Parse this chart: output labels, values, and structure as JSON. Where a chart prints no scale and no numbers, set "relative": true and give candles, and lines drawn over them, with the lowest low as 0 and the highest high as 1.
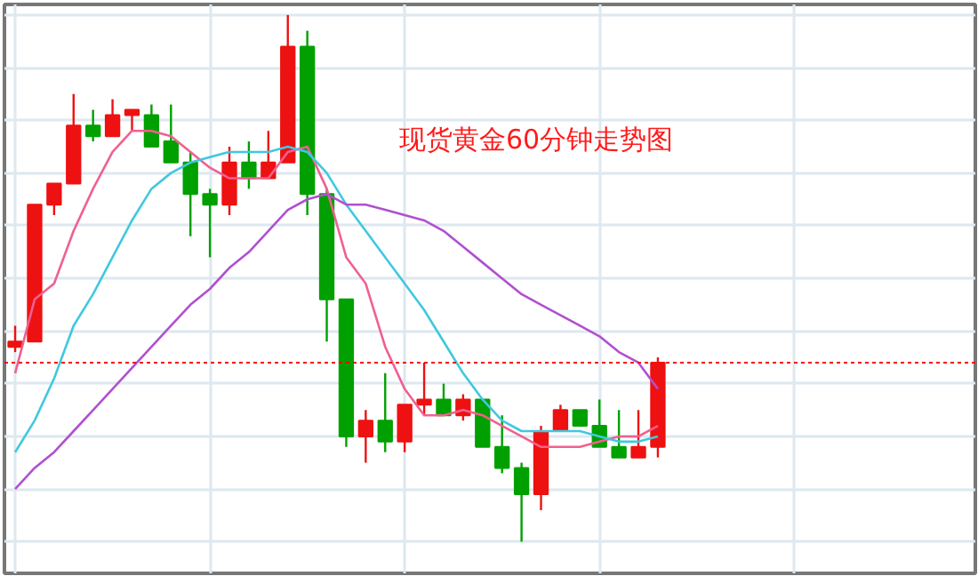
{
  "chart_data": {
    "type": "candlestick",
    "title": "现货黄金60分钟走势图",
    "relative": true,
    "grid": true,
    "categories": [
      null,
      null,
      null,
      null,
      null,
      null,
      null,
      null,
      null,
      null,
      null,
      null,
      null,
      null,
      null,
      null,
      null,
      null,
      null,
      null,
      null,
      null,
      null,
      null,
      null,
      null,
      null,
      null,
      null,
      null,
      null,
      null,
      null,
      null,
      null,
      null,
      null,
      null,
      null,
      null,
      null,
      null,
      null,
      null,
      null,
      null,
      null,
      null,
      null,
      null
    ],
    "ohlc": [
      [
        0.37,
        0.41,
        0.36,
        0.38
      ],
      [
        0.38,
        0.64,
        0.38,
        0.64
      ],
      [
        0.64,
        0.68,
        0.62,
        0.68
      ],
      [
        0.68,
        0.85,
        0.68,
        0.79
      ],
      [
        0.79,
        0.82,
        0.76,
        0.77
      ],
      [
        0.77,
        0.84,
        0.77,
        0.81
      ],
      [
        0.81,
        0.82,
        0.78,
        0.82
      ],
      [
        0.81,
        0.83,
        0.75,
        0.75
      ],
      [
        0.76,
        0.83,
        0.72,
        0.72
      ],
      [
        0.72,
        0.74,
        0.58,
        0.66
      ],
      [
        0.66,
        0.67,
        0.54,
        0.64
      ],
      [
        0.64,
        0.75,
        0.62,
        0.72
      ],
      [
        0.72,
        0.76,
        0.67,
        0.69
      ],
      [
        0.69,
        0.78,
        0.69,
        0.72
      ],
      [
        0.72,
        1,
        0.72,
        0.94
      ],
      [
        0.94,
        0.97,
        0.62,
        0.66
      ],
      [
        0.66,
        0.67,
        0.38,
        0.46
      ],
      [
        0.46,
        0.46,
        0.18,
        0.2
      ],
      [
        0.2,
        0.25,
        0.15,
        0.23
      ],
      [
        0.23,
        0.32,
        0.17,
        0.19
      ],
      [
        0.19,
        0.26,
        0.17,
        0.26
      ],
      [
        0.26,
        0.34,
        0.24,
        0.27
      ],
      [
        0.27,
        0.3,
        0.24,
        0.24
      ],
      [
        0.24,
        0.28,
        0.23,
        0.27
      ],
      [
        0.27,
        0.27,
        0.18,
        0.18
      ],
      [
        0.18,
        0.24,
        0.13,
        0.14
      ],
      [
        0.14,
        0.15,
        0,
        0.09
      ],
      [
        0.09,
        0.22,
        0.06,
        0.21
      ],
      [
        0.21,
        0.26,
        0.21,
        0.25
      ],
      [
        0.25,
        0.25,
        0.22,
        0.22
      ],
      [
        0.22,
        0.27,
        0.18,
        0.18
      ],
      [
        0.18,
        0.25,
        0.16,
        0.16
      ],
      [
        0.16,
        0.25,
        0.16,
        0.18
      ],
      [
        0.18,
        0.35,
        0.16,
        0.34
      ],
      null,
      null,
      null,
      null,
      null,
      null,
      null,
      null,
      null,
      null,
      null,
      null,
      null,
      null,
      null,
      null
    ],
    "colors": [
      "#ee1111",
      "#ee1111",
      "#ee1111",
      "#ee1111",
      "#00a000",
      "#ee1111",
      "#ee1111",
      "#00a000",
      "#00a000",
      "#00a000",
      "#00a000",
      "#ee1111",
      "#00a000",
      "#ee1111",
      "#ee1111",
      "#00a000",
      "#00a000",
      "#00a000",
      "#ee1111",
      "#00a000",
      "#ee1111",
      "#ee1111",
      "#00a000",
      "#ee1111",
      "#00a000",
      "#00a000",
      "#00a000",
      "#ee1111",
      "#ee1111",
      "#00a000",
      "#00a000",
      "#00a000",
      "#ee1111",
      "#ee1111",
      null,
      null,
      null,
      null,
      null,
      null,
      null,
      null,
      null,
      null,
      null,
      null,
      null,
      null,
      null,
      null
    ],
    "series": [
      {
        "type": "line",
        "color": "#f06090",
        "values": [
          0.32,
          0.46,
          0.49,
          0.59,
          0.67,
          0.74,
          0.78,
          0.78,
          0.77,
          0.74,
          0.71,
          0.69,
          0.69,
          0.69,
          0.74,
          0.75,
          0.67,
          0.54,
          0.49,
          0.37,
          0.29,
          0.24,
          0.24,
          0.25,
          0.24,
          0.22,
          0.2,
          0.18,
          0.18,
          0.18,
          0.19,
          0.2,
          0.2,
          0.22,
          null,
          null,
          null,
          null,
          null,
          null,
          null,
          null,
          null,
          null,
          null,
          null,
          null,
          null,
          null,
          null
        ]
      },
      {
        "type": "line",
        "color": "#40c8e0",
        "values": [
          0.17,
          0.23,
          0.31,
          0.41,
          0.47,
          0.54,
          0.61,
          0.67,
          0.7,
          0.72,
          0.73,
          0.74,
          0.74,
          0.74,
          0.75,
          0.74,
          0.7,
          0.64,
          0.59,
          0.54,
          0.49,
          0.44,
          0.38,
          0.32,
          0.27,
          0.23,
          0.21,
          0.21,
          0.21,
          0.21,
          0.2,
          0.19,
          0.19,
          0.2,
          null,
          null,
          null,
          null,
          null,
          null,
          null,
          null,
          null,
          null,
          null,
          null,
          null,
          null,
          null,
          null
        ]
      },
      {
        "type": "line",
        "color": "#b050d0",
        "values": [
          0.1,
          0.14,
          0.17,
          0.21,
          0.25,
          0.29,
          0.33,
          0.37,
          0.41,
          0.45,
          0.48,
          0.52,
          0.55,
          0.59,
          0.63,
          0.65,
          0.66,
          0.64,
          0.64,
          0.63,
          0.62,
          0.61,
          0.59,
          0.56,
          0.53,
          0.5,
          0.47,
          0.45,
          0.43,
          0.41,
          0.39,
          0.36,
          0.34,
          0.29,
          null,
          null,
          null,
          null,
          null,
          null,
          null,
          null,
          null,
          null,
          null,
          null,
          null,
          null,
          null,
          null
        ]
      }
    ],
    "ref_lines": [
      {
        "axis": "y",
        "value": 0.34,
        "color": "#ff0000",
        "line_style": "dotted"
      }
    ]
  }
}
